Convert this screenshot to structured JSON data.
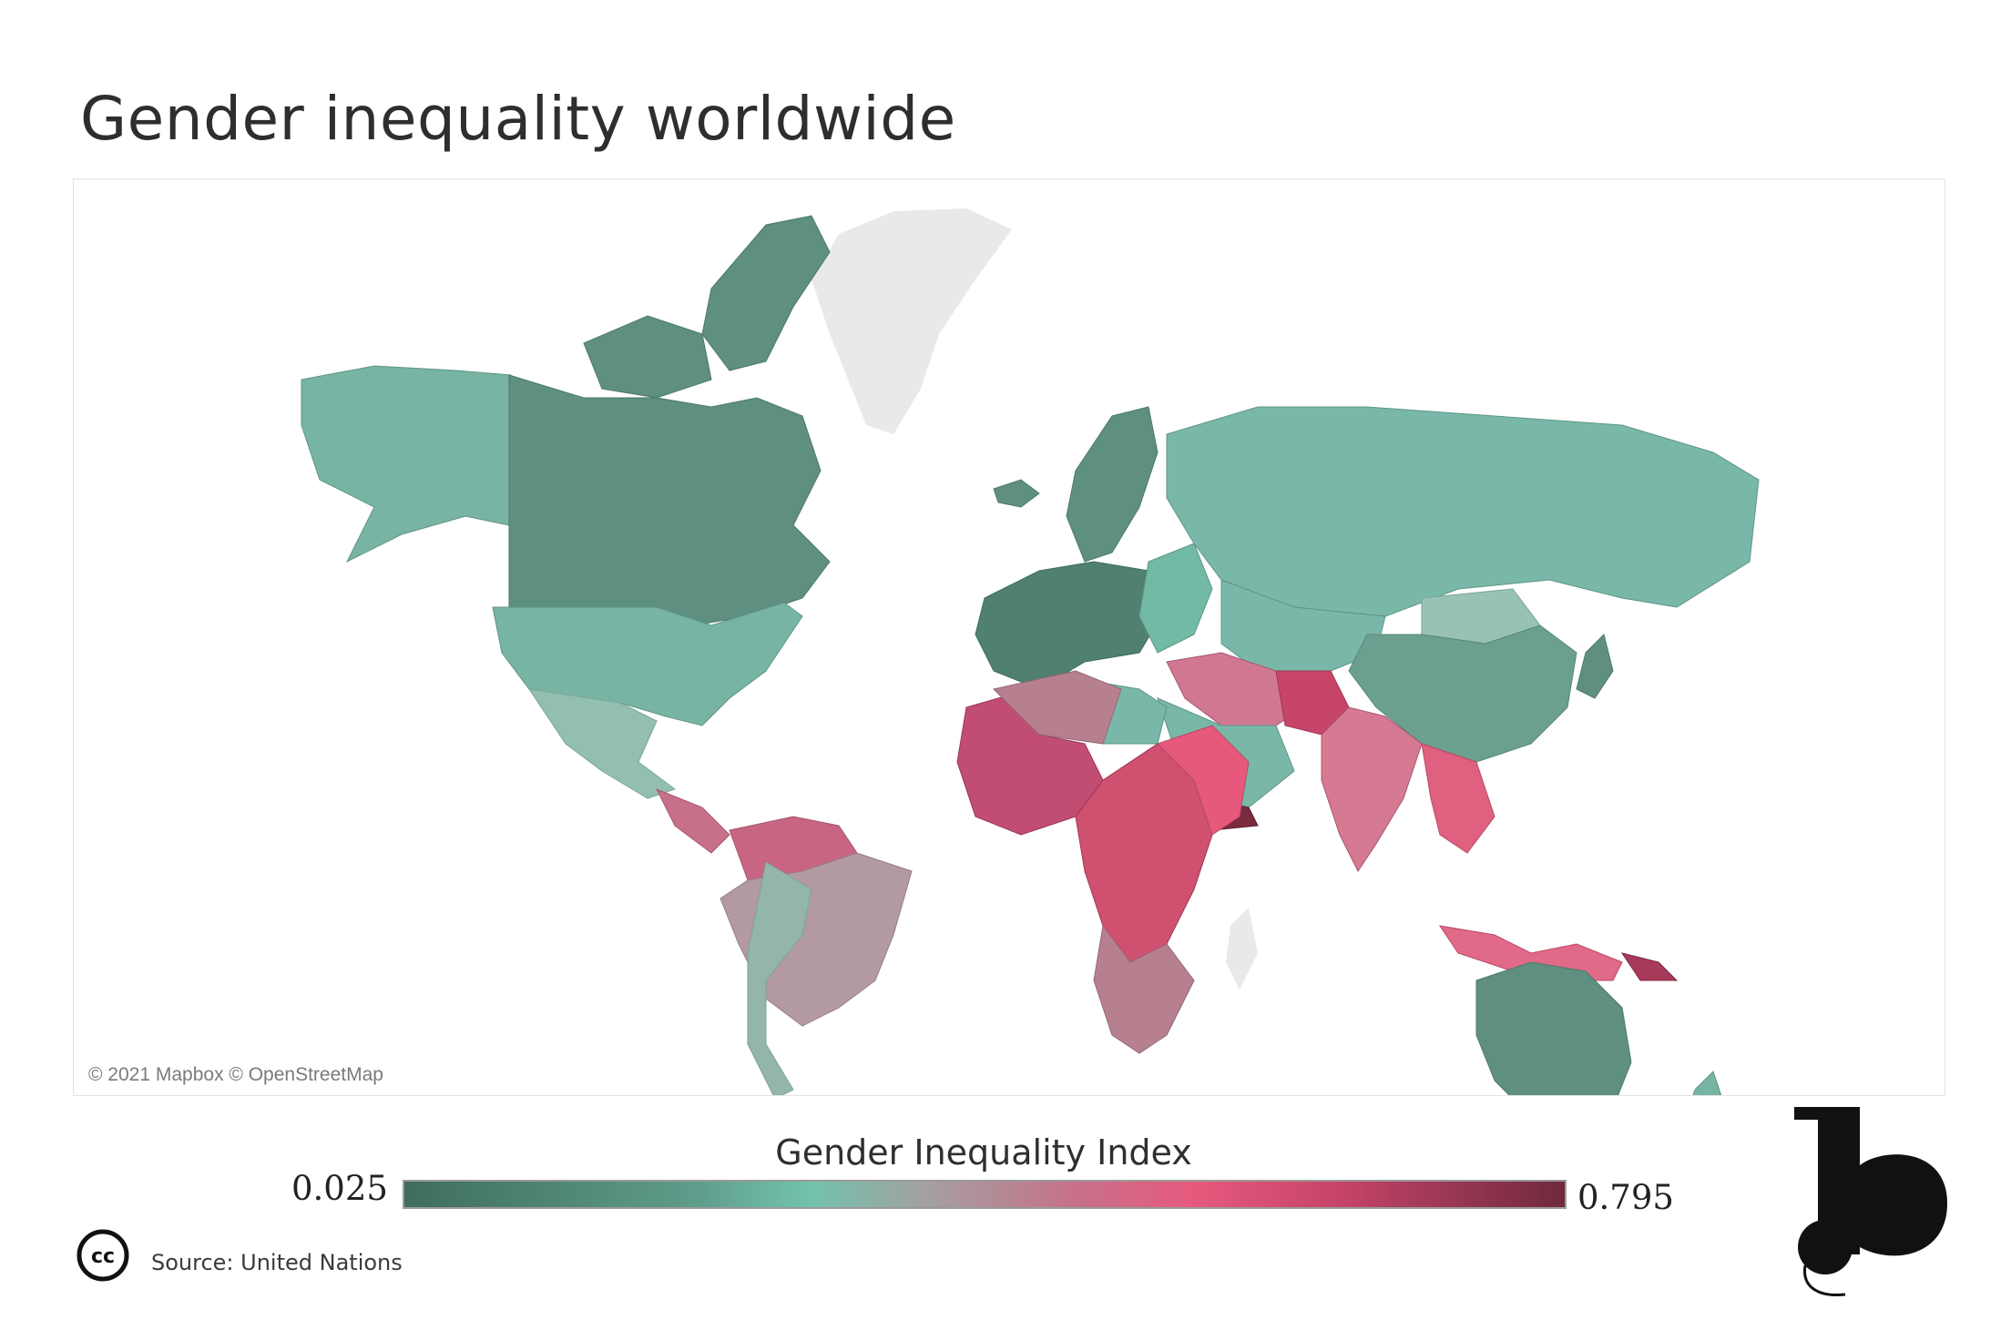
{
  "header": {
    "title": "Gender inequality worldwide"
  },
  "map": {
    "attribution": "© 2021 Mapbox © OpenStreetMap",
    "no_data_color": "#e9e9e9"
  },
  "legend": {
    "title": "Gender Inequality Index",
    "min_label": "0.025",
    "max_label": "0.795",
    "min_value": 0.025,
    "max_value": 0.795,
    "colors": [
      "#3f6d5f",
      "#72c3ae",
      "#a3a0a0",
      "#e6597d",
      "#6e2a3c"
    ]
  },
  "footer": {
    "license_icon": "cc-icon",
    "source": "Source: United Nations",
    "logo_icon": "brand-b-logo"
  }
}
